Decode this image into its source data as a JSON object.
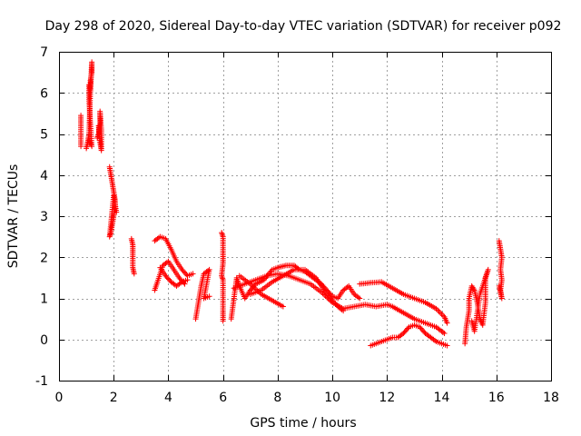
{
  "chart_data": {
    "type": "scatter",
    "title": "Day 298 of 2020, Sidereal Day-to-day VTEC variation (SDTVAR) for receiver p092",
    "xlabel": "GPS time / hours",
    "ylabel": "SDTVAR / TECUs",
    "xlim": [
      0,
      18
    ],
    "ylim": [
      -1,
      7
    ],
    "xticks": [
      0,
      2,
      4,
      6,
      8,
      10,
      12,
      14,
      16,
      18
    ],
    "yticks": [
      -1,
      0,
      1,
      2,
      3,
      4,
      5,
      6,
      7
    ],
    "grid": true,
    "marker": "+",
    "color": "#ff0000",
    "segments": [
      [
        [
          0.8,
          5.45
        ],
        [
          0.8,
          5.15
        ],
        [
          0.8,
          4.7
        ]
      ],
      [
        [
          1.0,
          4.65
        ],
        [
          1.05,
          4.8
        ],
        [
          1.1,
          5.0
        ],
        [
          1.15,
          6.1
        ],
        [
          1.15,
          6.3
        ],
        [
          1.2,
          6.5
        ],
        [
          1.2,
          6.75
        ],
        [
          1.15,
          6.05
        ],
        [
          1.1,
          6.2
        ],
        [
          1.1,
          5.8
        ],
        [
          1.2,
          4.7
        ],
        [
          1.1,
          4.85
        ]
      ],
      [
        [
          1.4,
          4.9
        ],
        [
          1.45,
          5.0
        ],
        [
          1.5,
          5.3
        ],
        [
          1.5,
          5.55
        ],
        [
          1.55,
          5.1
        ],
        [
          1.55,
          4.6
        ],
        [
          1.5,
          4.8
        ],
        [
          1.45,
          5.2
        ]
      ],
      [
        [
          1.85,
          4.2
        ],
        [
          1.9,
          4.0
        ],
        [
          1.95,
          3.8
        ],
        [
          2.0,
          3.6
        ],
        [
          2.05,
          3.4
        ],
        [
          2.05,
          3.2
        ],
        [
          2.0,
          3.0
        ],
        [
          1.95,
          2.8
        ],
        [
          1.9,
          2.6
        ],
        [
          1.85,
          2.5
        ],
        [
          2.0,
          3.5
        ],
        [
          2.1,
          3.1
        ]
      ],
      [
        [
          2.65,
          2.45
        ],
        [
          2.7,
          2.3
        ],
        [
          2.7,
          2.1
        ],
        [
          2.7,
          1.75
        ],
        [
          2.75,
          1.6
        ]
      ],
      [
        [
          3.5,
          2.4
        ],
        [
          3.7,
          2.5
        ],
        [
          3.9,
          2.45
        ],
        [
          4.1,
          2.2
        ],
        [
          4.3,
          1.9
        ],
        [
          4.5,
          1.7
        ],
        [
          4.7,
          1.55
        ],
        [
          4.9,
          1.6
        ]
      ],
      [
        [
          3.5,
          1.2
        ],
        [
          3.6,
          1.4
        ],
        [
          3.8,
          1.8
        ],
        [
          4.0,
          1.9
        ],
        [
          4.2,
          1.7
        ],
        [
          4.4,
          1.5
        ],
        [
          4.6,
          1.35
        ]
      ],
      [
        [
          3.7,
          1.75
        ],
        [
          3.9,
          1.55
        ],
        [
          4.1,
          1.4
        ],
        [
          4.3,
          1.3
        ],
        [
          4.5,
          1.4
        ],
        [
          4.7,
          1.45
        ]
      ],
      [
        [
          5.0,
          0.5
        ],
        [
          5.1,
          0.9
        ],
        [
          5.2,
          1.3
        ],
        [
          5.3,
          1.6
        ],
        [
          5.4,
          1.65
        ],
        [
          5.5,
          1.7
        ],
        [
          5.3,
          1.0
        ],
        [
          5.5,
          1.05
        ]
      ],
      [
        [
          5.95,
          2.6
        ],
        [
          6.0,
          2.5
        ],
        [
          6.0,
          2.1
        ],
        [
          6.0,
          1.85
        ],
        [
          5.95,
          1.55
        ],
        [
          6.0,
          1.45
        ],
        [
          6.0,
          0.7
        ],
        [
          6.0,
          0.45
        ]
      ],
      [
        [
          6.3,
          0.5
        ],
        [
          6.4,
          1.0
        ],
        [
          6.5,
          1.5
        ],
        [
          6.6,
          1.3
        ],
        [
          6.8,
          1.0
        ],
        [
          7.0,
          1.2
        ],
        [
          7.2,
          1.35
        ],
        [
          7.5,
          1.45
        ],
        [
          7.8,
          1.7
        ],
        [
          8.0,
          1.75
        ],
        [
          8.3,
          1.8
        ],
        [
          8.6,
          1.8
        ],
        [
          8.8,
          1.7
        ],
        [
          9.0,
          1.65
        ],
        [
          9.2,
          1.55
        ],
        [
          9.4,
          1.45
        ],
        [
          9.6,
          1.35
        ],
        [
          9.8,
          1.2
        ],
        [
          10.0,
          1.05
        ],
        [
          10.2,
          1.0
        ],
        [
          10.4,
          1.2
        ],
        [
          10.6,
          1.3
        ],
        [
          10.8,
          1.1
        ],
        [
          11.0,
          1.0
        ]
      ],
      [
        [
          6.4,
          1.25
        ],
        [
          6.8,
          1.35
        ],
        [
          7.2,
          1.45
        ],
        [
          7.6,
          1.55
        ],
        [
          8.0,
          1.6
        ],
        [
          8.4,
          1.55
        ],
        [
          8.8,
          1.45
        ],
        [
          9.2,
          1.35
        ],
        [
          9.6,
          1.15
        ],
        [
          10.0,
          0.9
        ],
        [
          10.4,
          0.75
        ],
        [
          10.8,
          0.8
        ],
        [
          11.2,
          0.85
        ],
        [
          11.6,
          0.8
        ],
        [
          12.0,
          0.85
        ],
        [
          12.2,
          0.8
        ],
        [
          12.6,
          0.65
        ],
        [
          13.0,
          0.5
        ],
        [
          13.4,
          0.4
        ],
        [
          13.8,
          0.3
        ],
        [
          14.1,
          0.15
        ]
      ],
      [
        [
          7.0,
          1.1
        ],
        [
          7.4,
          1.2
        ],
        [
          7.8,
          1.4
        ],
        [
          8.2,
          1.55
        ],
        [
          8.6,
          1.7
        ],
        [
          9.0,
          1.7
        ],
        [
          9.4,
          1.5
        ],
        [
          9.8,
          1.1
        ],
        [
          10.2,
          0.8
        ],
        [
          10.4,
          0.7
        ]
      ],
      [
        [
          6.6,
          1.55
        ],
        [
          7.0,
          1.35
        ],
        [
          7.4,
          1.1
        ],
        [
          7.8,
          0.95
        ],
        [
          8.2,
          0.8
        ]
      ],
      [
        [
          11.0,
          1.35
        ],
        [
          11.4,
          1.38
        ],
        [
          11.8,
          1.4
        ],
        [
          12.2,
          1.25
        ],
        [
          12.6,
          1.1
        ],
        [
          13.0,
          1.0
        ],
        [
          13.4,
          0.9
        ],
        [
          13.8,
          0.75
        ],
        [
          14.1,
          0.55
        ],
        [
          14.2,
          0.4
        ]
      ],
      [
        [
          11.4,
          -0.15
        ],
        [
          11.8,
          -0.05
        ],
        [
          12.2,
          0.05
        ],
        [
          12.4,
          0.05
        ],
        [
          12.6,
          0.15
        ],
        [
          12.8,
          0.3
        ],
        [
          13.0,
          0.35
        ],
        [
          13.2,
          0.3
        ],
        [
          13.4,
          0.15
        ],
        [
          13.6,
          0.05
        ],
        [
          13.8,
          -0.05
        ],
        [
          14.0,
          -0.1
        ],
        [
          14.2,
          -0.15
        ]
      ],
      [
        [
          14.85,
          -0.1
        ],
        [
          14.9,
          0.3
        ],
        [
          15.0,
          0.7
        ],
        [
          15.0,
          1.0
        ],
        [
          15.1,
          1.3
        ],
        [
          15.2,
          1.2
        ],
        [
          15.3,
          0.9
        ],
        [
          15.4,
          0.5
        ],
        [
          15.5,
          0.35
        ],
        [
          15.6,
          0.9
        ],
        [
          15.6,
          1.5
        ],
        [
          15.7,
          1.7
        ],
        [
          15.4,
          1.1
        ],
        [
          15.2,
          0.2
        ],
        [
          15.1,
          0.45
        ]
      ],
      [
        [
          16.1,
          2.4
        ],
        [
          16.15,
          2.2
        ],
        [
          16.2,
          2.0
        ],
        [
          16.15,
          1.7
        ],
        [
          16.2,
          1.45
        ],
        [
          16.15,
          1.2
        ],
        [
          16.2,
          1.0
        ],
        [
          16.1,
          1.3
        ]
      ]
    ]
  }
}
